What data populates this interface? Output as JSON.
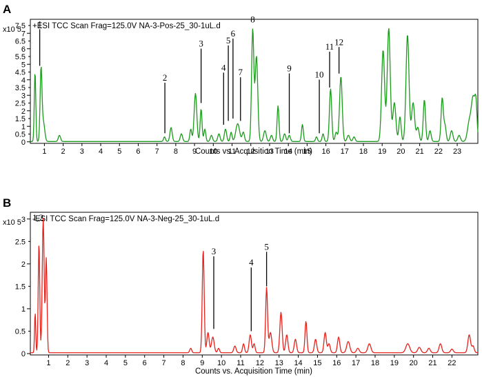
{
  "chart_data": [
    {
      "type": "line",
      "panel": "A",
      "header": "+ESI TCC Scan Frag=125.0V NA-3-Pos-25_30-1uL.d",
      "exponent_label": "x10 5",
      "xlabel": "Counts vs. Acquisition Time (min)",
      "xlim": [
        0.25,
        24.1
      ],
      "ylim": [
        -0.1,
        7.9
      ],
      "xticks": [
        1,
        2,
        3,
        4,
        5,
        6,
        7,
        8,
        9,
        10,
        11,
        12,
        13,
        14,
        15,
        16,
        17,
        18,
        19,
        20,
        21,
        22,
        23
      ],
      "yticks": [
        0,
        0.5,
        1,
        1.5,
        2,
        2.5,
        3,
        3.5,
        4,
        4.5,
        5,
        5.5,
        6,
        6.5,
        7,
        7.5
      ],
      "color": "#1a9a1a",
      "peaks": [
        [
          0.5,
          4.5,
          0.04
        ],
        [
          0.82,
          4.65,
          0.05
        ],
        [
          0.95,
          1.2,
          0.07
        ],
        [
          1.8,
          0.4,
          0.06
        ],
        [
          7.4,
          0.3,
          0.05
        ],
        [
          7.75,
          0.9,
          0.06
        ],
        [
          8.3,
          0.5,
          0.06
        ],
        [
          8.8,
          0.8,
          0.05
        ],
        [
          9.05,
          3.1,
          0.07
        ],
        [
          9.35,
          2.1,
          0.05
        ],
        [
          9.55,
          0.8,
          0.05
        ],
        [
          9.9,
          0.4,
          0.06
        ],
        [
          10.3,
          0.5,
          0.06
        ],
        [
          10.65,
          0.8,
          0.06
        ],
        [
          10.95,
          0.6,
          0.05
        ],
        [
          11.3,
          1.15,
          0.1
        ],
        [
          11.6,
          0.6,
          0.06
        ],
        [
          12.1,
          7.2,
          0.06
        ],
        [
          12.3,
          5.5,
          0.07
        ],
        [
          12.75,
          0.7,
          0.07
        ],
        [
          13.1,
          0.4,
          0.06
        ],
        [
          13.45,
          2.3,
          0.05
        ],
        [
          13.8,
          0.5,
          0.06
        ],
        [
          14.05,
          0.4,
          0.06
        ],
        [
          14.75,
          1.1,
          0.05
        ],
        [
          15.5,
          0.3,
          0.05
        ],
        [
          15.85,
          0.5,
          0.05
        ],
        [
          16.25,
          3.4,
          0.06
        ],
        [
          16.55,
          0.6,
          0.06
        ],
        [
          16.8,
          4.2,
          0.07
        ],
        [
          17.2,
          0.4,
          0.07
        ],
        [
          17.5,
          0.3,
          0.06
        ],
        [
          19.05,
          5.9,
          0.08
        ],
        [
          19.35,
          7.3,
          0.08
        ],
        [
          19.65,
          2.5,
          0.08
        ],
        [
          19.95,
          1.6,
          0.06
        ],
        [
          20.35,
          6.9,
          0.08
        ],
        [
          20.65,
          2.5,
          0.08
        ],
        [
          20.9,
          0.9,
          0.07
        ],
        [
          21.25,
          2.7,
          0.06
        ],
        [
          21.55,
          0.7,
          0.06
        ],
        [
          22.2,
          2.8,
          0.06
        ],
        [
          22.35,
          1.0,
          0.06
        ],
        [
          22.7,
          0.7,
          0.07
        ],
        [
          23.1,
          0.4,
          0.07
        ],
        [
          23.65,
          1.3,
          0.1
        ],
        [
          23.85,
          2.7,
          0.09
        ],
        [
          24.0,
          2.2,
          0.06
        ]
      ],
      "annotations": [
        {
          "label": "1",
          "x": 0.75,
          "y_top": 7.35,
          "y_bottom": 4.9,
          "line": true
        },
        {
          "label": "2",
          "x": 7.42,
          "y_top": 3.9,
          "y_bottom": 0.55,
          "line": true
        },
        {
          "label": "3",
          "x": 9.35,
          "y_top": 6.1,
          "y_bottom": 2.5,
          "line": true
        },
        {
          "label": "4",
          "x": 10.55,
          "y_top": 4.55,
          "y_bottom": 1.1,
          "line": true
        },
        {
          "label": "5",
          "x": 10.8,
          "y_top": 6.3,
          "y_bottom": 1.35,
          "line": true
        },
        {
          "label": "6",
          "x": 11.05,
          "y_top": 6.75,
          "y_bottom": 1.5,
          "line": true
        },
        {
          "label": "7",
          "x": 11.45,
          "y_top": 4.25,
          "y_bottom": 1.35,
          "line": true
        },
        {
          "label": "8",
          "x": 12.1,
          "y_top": 7.65,
          "y_bottom": 7.35,
          "line": false
        },
        {
          "label": "9",
          "x": 14.05,
          "y_top": 4.5,
          "y_bottom": 0.55,
          "line": true
        },
        {
          "label": "10",
          "x": 15.65,
          "y_top": 4.1,
          "y_bottom": 0.55,
          "line": true
        },
        {
          "label": "11",
          "x": 16.2,
          "y_top": 5.9,
          "y_bottom": 3.5,
          "line": true
        },
        {
          "label": "12",
          "x": 16.7,
          "y_top": 6.2,
          "y_bottom": 4.4,
          "line": true
        }
      ]
    },
    {
      "type": "line",
      "panel": "B",
      "header": "-ESI TCC Scan Frag=125.0V NA-3-Neg-25_30-1uL.d",
      "exponent_label": "x10 5",
      "xlabel": "Counts vs. Acquisition Time (min)",
      "xlim": [
        0.05,
        23.35
      ],
      "ylim": [
        -0.03,
        3.15
      ],
      "xticks": [
        1,
        2,
        3,
        4,
        5,
        6,
        7,
        8,
        9,
        10,
        11,
        12,
        13,
        14,
        15,
        16,
        17,
        18,
        19,
        20,
        21,
        22
      ],
      "yticks": [
        0,
        0.5,
        1,
        1.5,
        2,
        2.5,
        3
      ],
      "color": "#e8201a",
      "peaks": [
        [
          0.3,
          0.9,
          0.03
        ],
        [
          0.5,
          2.45,
          0.04
        ],
        [
          0.72,
          3.0,
          0.05
        ],
        [
          0.88,
          2.1,
          0.04
        ],
        [
          8.4,
          0.1,
          0.05
        ],
        [
          9.05,
          2.3,
          0.05
        ],
        [
          9.3,
          0.45,
          0.06
        ],
        [
          9.55,
          0.35,
          0.07
        ],
        [
          9.85,
          0.1,
          0.05
        ],
        [
          10.7,
          0.15,
          0.06
        ],
        [
          11.15,
          0.2,
          0.05
        ],
        [
          11.5,
          0.4,
          0.06
        ],
        [
          11.7,
          0.2,
          0.05
        ],
        [
          12.35,
          1.45,
          0.05
        ],
        [
          12.55,
          0.45,
          0.07
        ],
        [
          13.1,
          0.9,
          0.06
        ],
        [
          13.4,
          0.4,
          0.06
        ],
        [
          13.85,
          0.3,
          0.06
        ],
        [
          14.4,
          0.7,
          0.05
        ],
        [
          14.9,
          0.3,
          0.06
        ],
        [
          15.4,
          0.45,
          0.06
        ],
        [
          15.6,
          0.2,
          0.06
        ],
        [
          16.1,
          0.35,
          0.06
        ],
        [
          16.6,
          0.25,
          0.08
        ],
        [
          17.1,
          0.1,
          0.07
        ],
        [
          17.7,
          0.2,
          0.08
        ],
        [
          19.7,
          0.2,
          0.1
        ],
        [
          20.3,
          0.12,
          0.08
        ],
        [
          20.8,
          0.1,
          0.07
        ],
        [
          21.4,
          0.2,
          0.07
        ],
        [
          22.0,
          0.08,
          0.07
        ],
        [
          22.9,
          0.4,
          0.07
        ],
        [
          23.1,
          0.15,
          0.06
        ]
      ],
      "annotations": [
        {
          "label": "1,2",
          "x": 0.45,
          "y_top": 2.95,
          "y_bottom": 2.6,
          "line": false
        },
        {
          "label": "3",
          "x": 9.6,
          "y_top": 2.2,
          "y_bottom": 0.55,
          "line": true
        },
        {
          "label": "4",
          "x": 11.55,
          "y_top": 1.95,
          "y_bottom": 0.5,
          "line": true
        },
        {
          "label": "5",
          "x": 12.35,
          "y_top": 2.3,
          "y_bottom": 1.5,
          "line": true
        }
      ]
    }
  ]
}
